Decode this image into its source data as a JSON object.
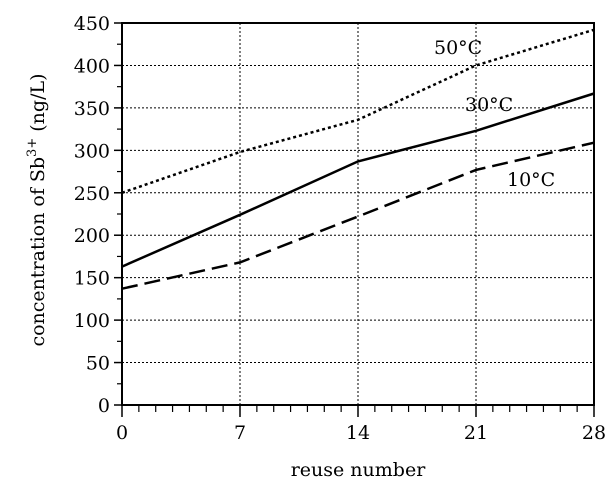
{
  "chart_data": {
    "type": "line",
    "xlabel": "reuse number",
    "ylabel": {
      "prefix": "concentration of Sb",
      "superscript": "3+",
      "suffix": " (ng/L)"
    },
    "xlim": [
      0,
      28
    ],
    "ylim": [
      0,
      450
    ],
    "x_ticks": [
      0,
      7,
      14,
      21,
      28
    ],
    "x_minor_step": 1,
    "y_ticks": [
      0,
      50,
      100,
      150,
      200,
      250,
      300,
      350,
      400,
      450
    ],
    "grid": true,
    "legend": "none",
    "x": [
      0,
      7,
      14,
      21,
      28
    ],
    "series": [
      {
        "name": "50°C",
        "values": [
          250,
          298,
          336,
          400,
          442
        ],
        "style": "dotted",
        "color": "#000000"
      },
      {
        "name": "30°C",
        "values": [
          163,
          224,
          287,
          323,
          367
        ],
        "style": "solid",
        "color": "#000000"
      },
      {
        "name": "10°C",
        "values": [
          137,
          168,
          222,
          277,
          309
        ],
        "style": "dashed",
        "color": "#000000"
      }
    ]
  }
}
